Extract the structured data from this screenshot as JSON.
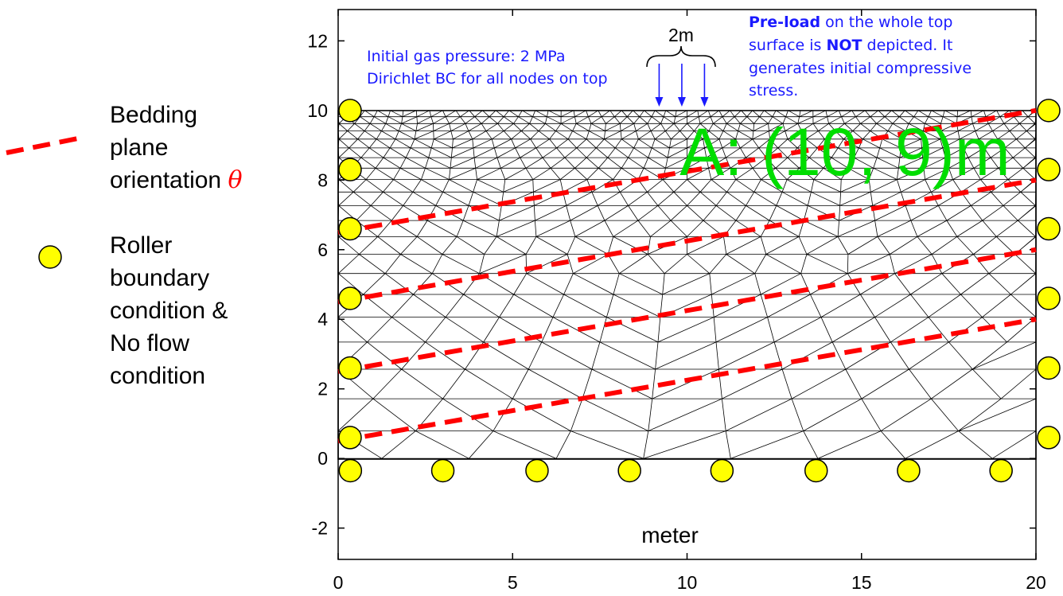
{
  "legend": {
    "bedding_lines": [
      "Bedding",
      "plane",
      "orientation "
    ],
    "theta_symbol": "θ",
    "roller_lines": [
      "Roller",
      "boundary",
      "condition &",
      "No flow",
      "condition"
    ],
    "bedding_color": "#ff0000",
    "roller_color": "#ffff00"
  },
  "annotations": {
    "gas_line1": "Initial gas pressure: 2 MPa",
    "gas_line2": "Dirichlet BC for all nodes on top",
    "load_width": "2m",
    "preload_bold1": "Pre-load",
    "preload_rest1": " on the whole top",
    "preload_pre2": "surface is ",
    "preload_bold2": "NOT",
    "preload_rest2": " depicted. It",
    "preload_line3": "generates initial compressive",
    "preload_line4": "stress.",
    "point_label": "A: (10, 9)m",
    "point_color": "#00dd00",
    "text_color": "#1a1aff"
  },
  "axes": {
    "xlabel": "meter",
    "x_ticks": [
      "0",
      "5",
      "10",
      "15",
      "20"
    ],
    "y_ticks": [
      "12",
      "10",
      "8",
      "6",
      "4",
      "2",
      "0",
      "-2"
    ],
    "x_range": [
      0,
      20
    ],
    "y_range": [
      -2.9,
      12.9
    ]
  },
  "chart_data": {
    "type": "mesh-diagram",
    "domain": {
      "x": [
        0,
        20
      ],
      "y": [
        0,
        10
      ]
    },
    "bedding_planes": [
      {
        "name": "bedding-line-1",
        "start": [
          0,
          0.5
        ],
        "end": [
          20,
          4
        ]
      },
      {
        "name": "bedding-line-2",
        "start": [
          0,
          2.5
        ],
        "end": [
          20,
          6
        ]
      },
      {
        "name": "bedding-line-3",
        "start": [
          0,
          4.5
        ],
        "end": [
          20,
          8
        ]
      },
      {
        "name": "bedding-line-4",
        "start": [
          0,
          6.5
        ],
        "end": [
          20,
          10
        ]
      }
    ],
    "load_arrows_x": [
      9.2,
      9.85,
      10.5
    ],
    "left_rollers_y": [
      0.6,
      2.6,
      4.6,
      6.6,
      8.3,
      10
    ],
    "right_rollers_y": [
      0.6,
      2.6,
      4.6,
      6.6,
      8.3,
      10
    ],
    "bottom_rollers_x": [
      0.35,
      3.0,
      5.7,
      8.35,
      11.0,
      13.7,
      16.35,
      19.0
    ],
    "bottom_roller_y": -0.35
  }
}
